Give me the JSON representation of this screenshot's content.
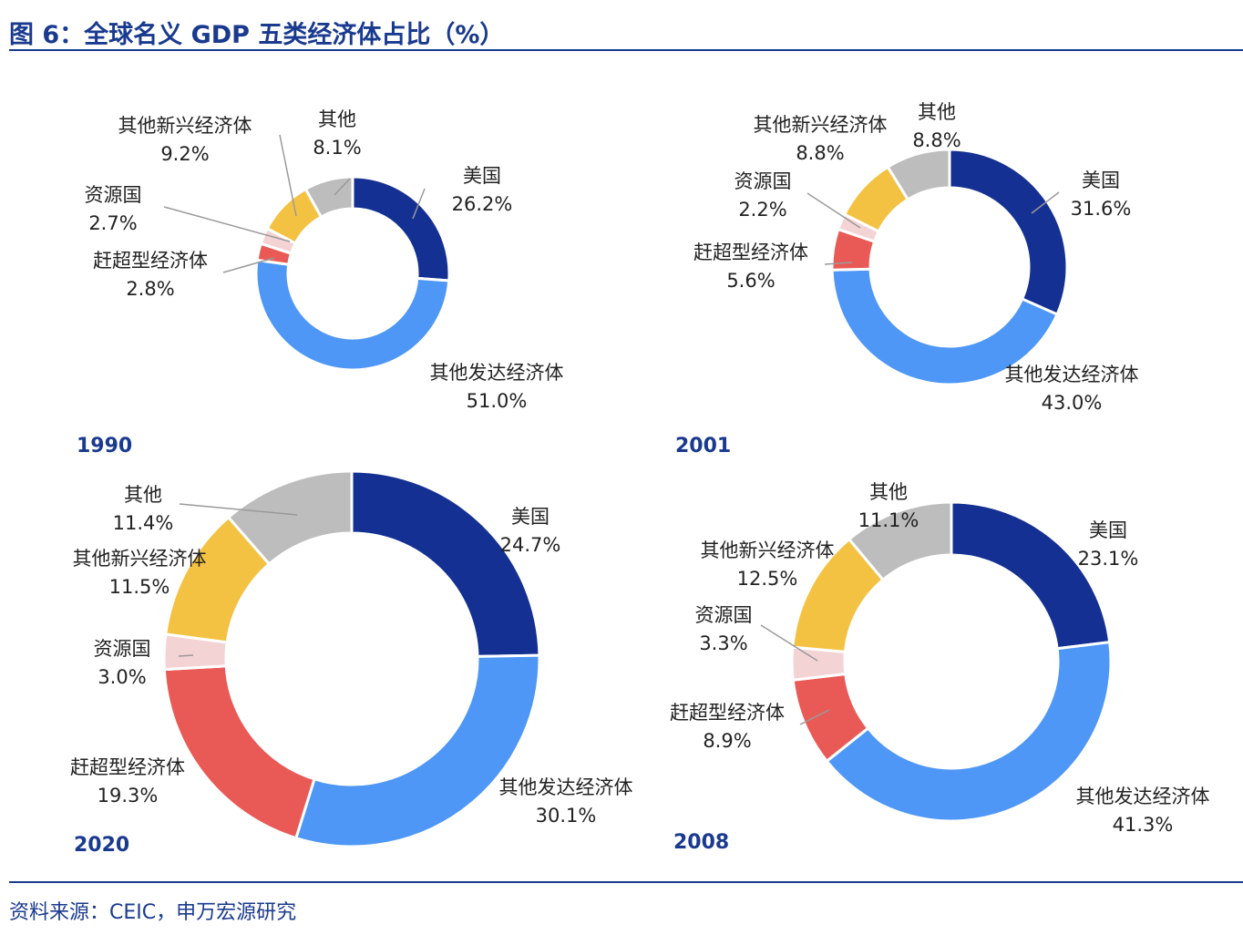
{
  "title": "图 6：全球名义 GDP 五类经济体占比（%）",
  "source": "资料来源：CEIC，申万宏源研究",
  "colors": {
    "accent": "#1a3a8f",
    "美国": "#143092",
    "其他发达经济体": "#4f97f6",
    "赶超型经济体": "#e95a56",
    "资源国": "#f4d3d5",
    "其他新兴经济体": "#f4c242",
    "其他": "#bdbdbd"
  },
  "chart_data": [
    {
      "type": "pie",
      "year_label": "1990",
      "labels": [
        "美国",
        "其他发达经济体",
        "赶超型经济体",
        "资源国",
        "其他新兴经济体",
        "其他"
      ],
      "values": [
        26.2,
        51.0,
        2.8,
        2.7,
        9.2,
        8.1
      ],
      "value_labels": [
        "26.2%",
        "51.0%",
        "2.8%",
        "2.7%",
        "9.2%",
        "8.1%"
      ]
    },
    {
      "type": "pie",
      "year_label": "2001",
      "labels": [
        "美国",
        "其他发达经济体",
        "赶超型经济体",
        "资源国",
        "其他新兴经济体",
        "其他"
      ],
      "values": [
        31.6,
        43.0,
        5.6,
        2.2,
        8.8,
        8.8
      ],
      "value_labels": [
        "31.6%",
        "43.0%",
        "5.6%",
        "2.2%",
        "8.8%",
        "8.8%"
      ]
    },
    {
      "type": "pie",
      "year_label": "2020",
      "labels": [
        "美国",
        "其他发达经济体",
        "赶超型经济体",
        "资源国",
        "其他新兴经济体",
        "其他"
      ],
      "values": [
        24.7,
        30.1,
        19.3,
        3.0,
        11.5,
        11.4
      ],
      "value_labels": [
        "24.7%",
        "30.1%",
        "19.3%",
        "3.0%",
        "11.5%",
        "11.4%"
      ]
    },
    {
      "type": "pie",
      "year_label": "2008",
      "labels": [
        "美国",
        "其他发达经济体",
        "赶超型经济体",
        "资源国",
        "其他新兴经济体",
        "其他"
      ],
      "values": [
        23.1,
        41.3,
        8.9,
        3.3,
        12.5,
        11.1
      ],
      "value_labels": [
        "23.1%",
        "41.3%",
        "8.9%",
        "3.3%",
        "12.5%",
        "11.1%"
      ]
    }
  ]
}
